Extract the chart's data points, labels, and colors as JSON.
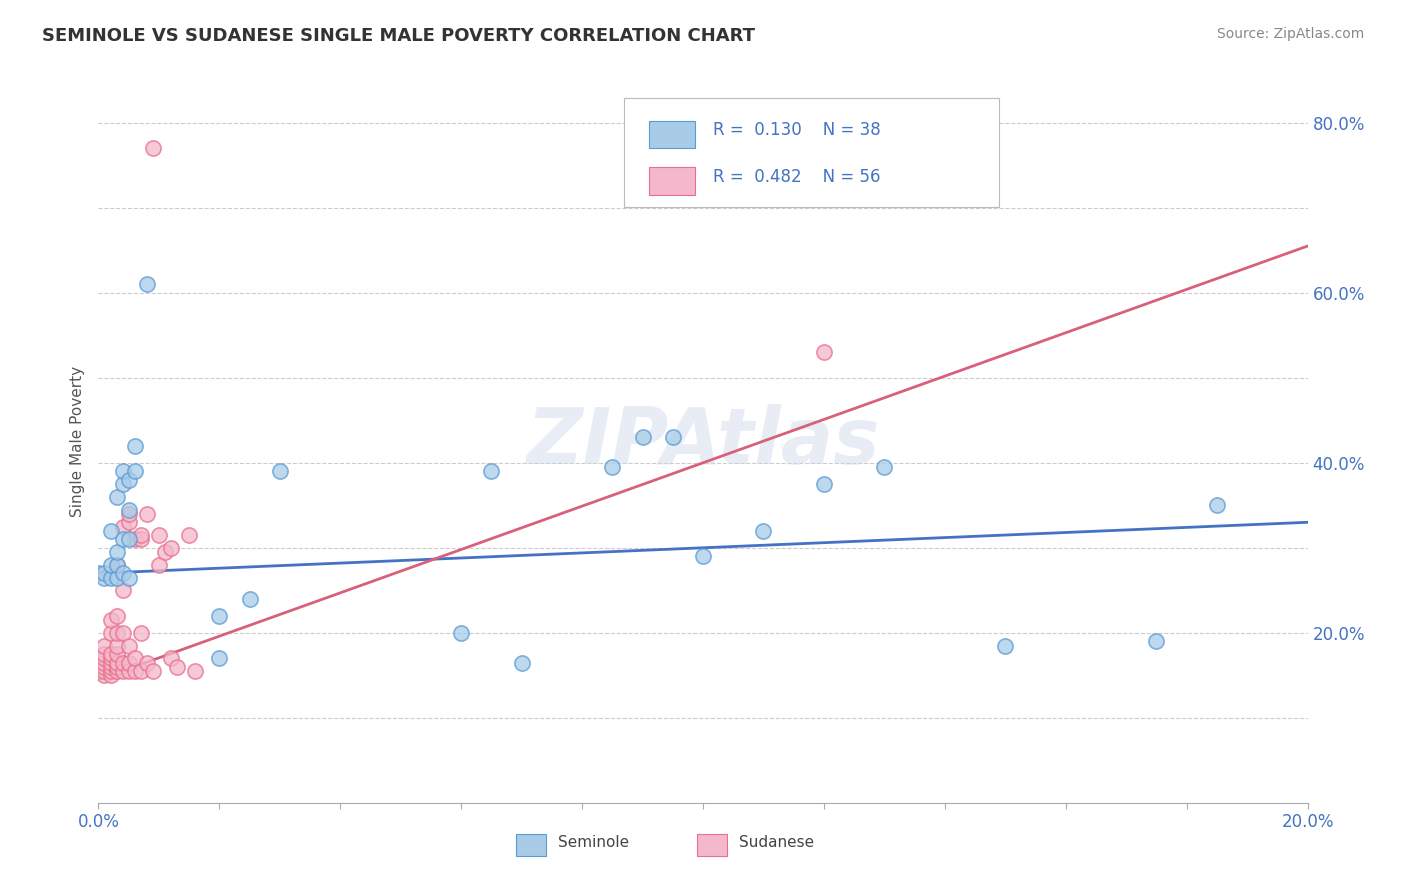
{
  "title": "SEMINOLE VS SUDANESE SINGLE MALE POVERTY CORRELATION CHART",
  "source": "Source: ZipAtlas.com",
  "ylabel": "Single Male Poverty",
  "xlim": [
    0.0,
    0.2
  ],
  "ylim": [
    0.0,
    0.85
  ],
  "xticks": [
    0.0,
    0.02,
    0.04,
    0.06,
    0.08,
    0.1,
    0.12,
    0.14,
    0.16,
    0.18,
    0.2
  ],
  "ytick_positions": [
    0.0,
    0.1,
    0.2,
    0.3,
    0.4,
    0.5,
    0.6,
    0.7,
    0.8
  ],
  "ytick_labels": [
    "",
    "",
    "20.0%",
    "",
    "40.0%",
    "",
    "60.0%",
    "",
    "80.0%"
  ],
  "seminole_color": "#a8cce8",
  "sudanese_color": "#f4b8cc",
  "seminole_edge_color": "#5b9bd5",
  "sudanese_edge_color": "#e8708a",
  "seminole_line_color": "#4472c4",
  "sudanese_line_color": "#d9607a",
  "R_seminole": 0.13,
  "N_seminole": 38,
  "R_sudanese": 0.482,
  "N_sudanese": 56,
  "watermark": "ZIPAtlas",
  "seminole_scatter": [
    [
      0.0,
      0.27
    ],
    [
      0.001,
      0.265
    ],
    [
      0.001,
      0.27
    ],
    [
      0.002,
      0.265
    ],
    [
      0.002,
      0.28
    ],
    [
      0.002,
      0.32
    ],
    [
      0.003,
      0.265
    ],
    [
      0.003,
      0.28
    ],
    [
      0.003,
      0.295
    ],
    [
      0.003,
      0.36
    ],
    [
      0.004,
      0.27
    ],
    [
      0.004,
      0.31
    ],
    [
      0.004,
      0.375
    ],
    [
      0.004,
      0.39
    ],
    [
      0.005,
      0.265
    ],
    [
      0.005,
      0.31
    ],
    [
      0.005,
      0.345
    ],
    [
      0.005,
      0.38
    ],
    [
      0.006,
      0.39
    ],
    [
      0.006,
      0.42
    ],
    [
      0.008,
      0.61
    ],
    [
      0.02,
      0.22
    ],
    [
      0.02,
      0.17
    ],
    [
      0.025,
      0.24
    ],
    [
      0.03,
      0.39
    ],
    [
      0.06,
      0.2
    ],
    [
      0.065,
      0.39
    ],
    [
      0.07,
      0.165
    ],
    [
      0.085,
      0.395
    ],
    [
      0.09,
      0.43
    ],
    [
      0.095,
      0.43
    ],
    [
      0.1,
      0.29
    ],
    [
      0.11,
      0.32
    ],
    [
      0.12,
      0.375
    ],
    [
      0.13,
      0.395
    ],
    [
      0.15,
      0.185
    ],
    [
      0.175,
      0.19
    ],
    [
      0.185,
      0.35
    ]
  ],
  "sudanese_scatter": [
    [
      0.0,
      0.155
    ],
    [
      0.0,
      0.16
    ],
    [
      0.0,
      0.165
    ],
    [
      0.001,
      0.15
    ],
    [
      0.001,
      0.155
    ],
    [
      0.001,
      0.16
    ],
    [
      0.001,
      0.165
    ],
    [
      0.001,
      0.17
    ],
    [
      0.001,
      0.175
    ],
    [
      0.001,
      0.185
    ],
    [
      0.002,
      0.15
    ],
    [
      0.002,
      0.155
    ],
    [
      0.002,
      0.16
    ],
    [
      0.002,
      0.165
    ],
    [
      0.002,
      0.17
    ],
    [
      0.002,
      0.175
    ],
    [
      0.002,
      0.2
    ],
    [
      0.002,
      0.215
    ],
    [
      0.003,
      0.155
    ],
    [
      0.003,
      0.16
    ],
    [
      0.003,
      0.165
    ],
    [
      0.003,
      0.175
    ],
    [
      0.003,
      0.185
    ],
    [
      0.003,
      0.2
    ],
    [
      0.003,
      0.22
    ],
    [
      0.003,
      0.28
    ],
    [
      0.004,
      0.155
    ],
    [
      0.004,
      0.165
    ],
    [
      0.004,
      0.2
    ],
    [
      0.004,
      0.25
    ],
    [
      0.004,
      0.325
    ],
    [
      0.005,
      0.155
    ],
    [
      0.005,
      0.165
    ],
    [
      0.005,
      0.185
    ],
    [
      0.005,
      0.33
    ],
    [
      0.005,
      0.34
    ],
    [
      0.006,
      0.155
    ],
    [
      0.006,
      0.17
    ],
    [
      0.006,
      0.31
    ],
    [
      0.007,
      0.155
    ],
    [
      0.007,
      0.2
    ],
    [
      0.007,
      0.31
    ],
    [
      0.007,
      0.315
    ],
    [
      0.008,
      0.165
    ],
    [
      0.008,
      0.34
    ],
    [
      0.009,
      0.155
    ],
    [
      0.009,
      0.77
    ],
    [
      0.01,
      0.28
    ],
    [
      0.01,
      0.315
    ],
    [
      0.011,
      0.295
    ],
    [
      0.012,
      0.17
    ],
    [
      0.012,
      0.3
    ],
    [
      0.013,
      0.16
    ],
    [
      0.015,
      0.315
    ],
    [
      0.016,
      0.155
    ],
    [
      0.12,
      0.53
    ]
  ]
}
